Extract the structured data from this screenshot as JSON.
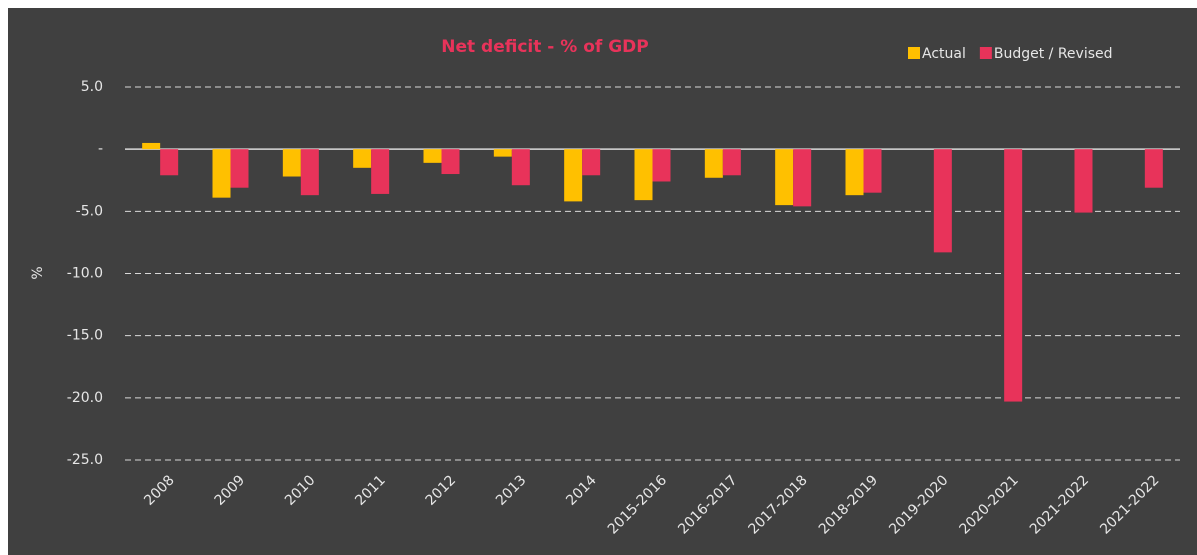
{
  "chart_data": {
    "type": "bar",
    "title": "Net deficit - % of GDP",
    "y_label": "%",
    "categories": [
      "2008",
      "2009",
      "2010",
      "2011",
      "2012",
      "2013",
      "2014",
      "2015-2016",
      "2016-2017",
      "2017-2018",
      "2018-2019",
      "2019-2020",
      "2020-2021",
      "2021-2022",
      "2021-2022"
    ],
    "series": [
      {
        "name": "Actual",
        "color": "#ffc000",
        "values": [
          0.5,
          -3.9,
          -2.2,
          -1.5,
          -1.1,
          -0.6,
          -4.2,
          -4.1,
          -2.3,
          -4.5,
          -3.7,
          null,
          null,
          null,
          null
        ]
      },
      {
        "name": "Budget / Revised",
        "color": "#e8335a",
        "values": [
          -2.1,
          -3.1,
          -3.7,
          -3.6,
          -2.0,
          -2.9,
          -2.1,
          -2.6,
          -2.1,
          -4.6,
          -3.5,
          -8.3,
          -20.3,
          -5.1,
          -3.1
        ]
      }
    ],
    "ylim": [
      -25,
      5
    ],
    "yticks": [
      {
        "value": -25,
        "label": "-25.0"
      },
      {
        "value": -20,
        "label": "-20.0"
      },
      {
        "value": -15,
        "label": "-15.0"
      },
      {
        "value": -10,
        "label": "-10.0"
      },
      {
        "value": -5,
        "label": "-5.0"
      },
      {
        "value": 0,
        "label": "-"
      },
      {
        "value": 5,
        "label": "5.0"
      }
    ],
    "grid": true,
    "legend": "top-right"
  }
}
